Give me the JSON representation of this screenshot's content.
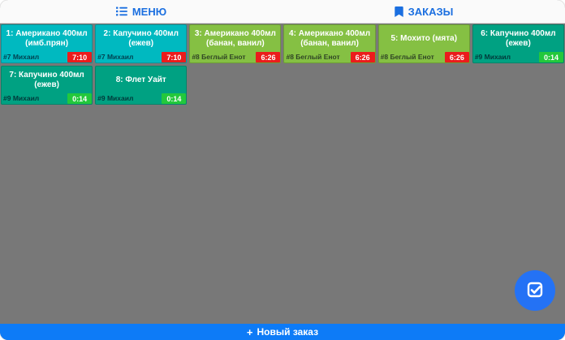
{
  "header": {
    "tabs": [
      {
        "label": "МЕНЮ",
        "icon": "list-icon"
      },
      {
        "label": "ЗАКАЗЫ",
        "icon": "bookmark-icon"
      }
    ]
  },
  "orders": [
    {
      "title": "1: Американо 400мл (имб.прян)",
      "client": "#7 Михаил",
      "timer": "7:10",
      "card_color": "#00b9c0",
      "badge_color": "#eb1c1c"
    },
    {
      "title": "2: Капучино 400мл (ежев)",
      "client": "#7 Михаил",
      "timer": "7:10",
      "card_color": "#00b9c0",
      "badge_color": "#eb1c1c"
    },
    {
      "title": "3: Американо 400мл (банан, ванил)",
      "client": "#8 Беглый Енот",
      "timer": "6:26",
      "card_color": "#85c043",
      "badge_color": "#eb1c1c"
    },
    {
      "title": "4: Американо 400мл (банан, ванил)",
      "client": "#8 Беглый Енот",
      "timer": "6:26",
      "card_color": "#85c043",
      "badge_color": "#eb1c1c"
    },
    {
      "title": "5: Мохито (мята)",
      "client": "#8 Беглый Енот",
      "timer": "6:26",
      "card_color": "#85c043",
      "badge_color": "#eb1c1c"
    },
    {
      "title": "6: Капучино 400мл (ежев)",
      "client": "#9 Михаил",
      "timer": "0:14",
      "card_color": "#00a182",
      "badge_color": "#23c83c"
    },
    {
      "title": "7: Капучино 400мл (ежев)",
      "client": "#9 Михаил",
      "timer": "0:14",
      "card_color": "#00a182",
      "badge_color": "#23c83c"
    },
    {
      "title": "8: Флет Уайт",
      "client": "#9 Михаил",
      "timer": "0:14",
      "card_color": "#00a182",
      "badge_color": "#23c83c"
    }
  ],
  "fab": {
    "icon": "check-square-icon"
  },
  "footer": {
    "plus_icon": "+",
    "new_order_label": "Новый заказ"
  },
  "colors": {
    "background_gray": "#787878",
    "top_bar_bg": "#fafafa",
    "tab_blue": "#1b6fe0",
    "bottom_bar_blue": "#0d7bf7",
    "fab_blue": "#2472f5",
    "card_cyan": "#00b9c0",
    "card_green": "#85c043",
    "card_teal": "#00a182",
    "badge_red": "#eb1c1c",
    "badge_green": "#23c83c"
  }
}
